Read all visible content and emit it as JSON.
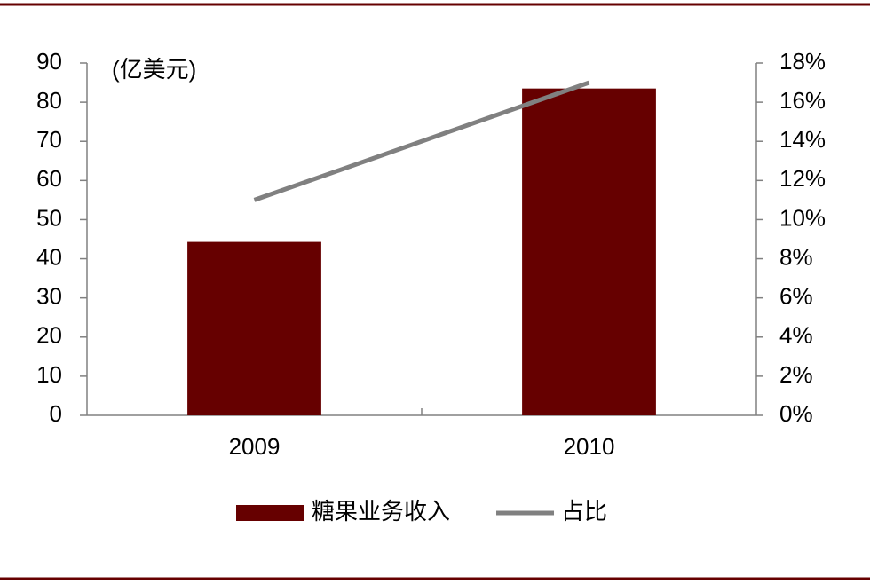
{
  "chart_data": {
    "type": "bar",
    "y_label": "(亿美元)",
    "categories": [
      "2009",
      "2010"
    ],
    "series": [
      {
        "name": "糖果业务收入",
        "type": "bar",
        "color": "#660000",
        "values": [
          44.3,
          83.5
        ]
      },
      {
        "name": "占比",
        "type": "line",
        "axis": "y2",
        "color": "#808080",
        "values": [
          11,
          17
        ]
      }
    ],
    "ylim": [
      0,
      90
    ],
    "yticks": [
      0,
      10,
      20,
      30,
      40,
      50,
      60,
      70,
      80,
      90
    ],
    "y2lim": [
      0,
      18
    ],
    "y2ticks": [
      {
        "value": 0,
        "label": "0%"
      },
      {
        "value": 2,
        "label": "2%"
      },
      {
        "value": 4,
        "label": "4%"
      },
      {
        "value": 6,
        "label": "6%"
      },
      {
        "value": 8,
        "label": "8%"
      },
      {
        "value": 10,
        "label": "10%"
      },
      {
        "value": 12,
        "label": "12%"
      },
      {
        "value": 14,
        "label": "14%"
      },
      {
        "value": 16,
        "label": "16%"
      },
      {
        "value": 18,
        "label": "18%"
      }
    ],
    "grid": false
  }
}
